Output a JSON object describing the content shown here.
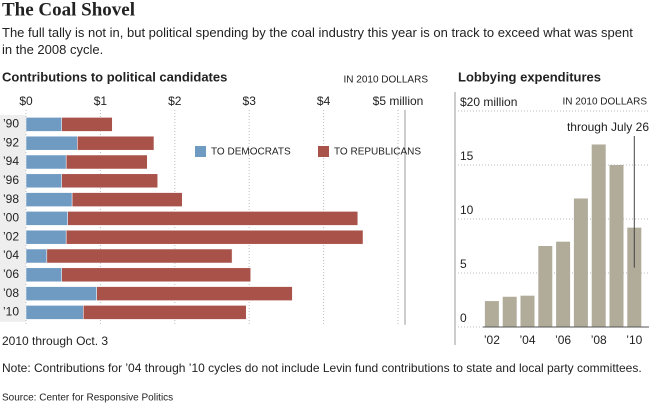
{
  "title": "The Coal Shovel",
  "intro": "The full tally is not in, but political spending by the coal industry this year is on track to exceed what was spent in the 2008 cycle.",
  "note": "Note: Contributions for ’04 through ’10 cycles do not include Levin fund contributions to state and local party committees.",
  "source": "Source: Center for Responsive Politics",
  "chart_data": [
    {
      "type": "bar",
      "orientation": "horizontal",
      "stacked": true,
      "title": "Contributions to political candidates",
      "subtitle": "IN 2010 DOLLARS",
      "annotation": "2010 through Oct. 3",
      "categories": [
        "’90",
        "’92",
        "’94",
        "’96",
        "’98",
        "’00",
        "’02",
        "’04",
        "’06",
        "’08",
        "’10"
      ],
      "series": [
        {
          "name": "TO DEMOCRATS",
          "color": "#6f9bc3",
          "values": [
            0.48,
            0.69,
            0.54,
            0.48,
            0.62,
            0.56,
            0.54,
            0.28,
            0.48,
            0.95,
            0.77
          ]
        },
        {
          "name": "TO REPUBLICANS",
          "color": "#a9524a",
          "values": [
            0.68,
            1.03,
            1.09,
            1.29,
            1.48,
            3.9,
            3.99,
            2.49,
            2.54,
            2.63,
            2.19
          ]
        }
      ],
      "xlim": [
        0,
        5
      ],
      "xticks": [
        {
          "value": 0,
          "label": "$0"
        },
        {
          "value": 1,
          "label": "$1"
        },
        {
          "value": 2,
          "label": "$2"
        },
        {
          "value": 3,
          "label": "$3"
        },
        {
          "value": 4,
          "label": "$4"
        },
        {
          "value": 5,
          "label": "$5 million"
        }
      ],
      "grid": true
    },
    {
      "type": "bar",
      "title": "Lobbying expenditures",
      "subtitle": "IN 2010 DOLLARS",
      "annotation": "through July 26",
      "categories": [
        "’02",
        null,
        "’04",
        null,
        "’06",
        null,
        "’08",
        null,
        "’10"
      ],
      "values": [
        2.4,
        2.8,
        2.9,
        7.5,
        7.9,
        11.9,
        16.9,
        15.0,
        9.2
      ],
      "color": "#b1ac99",
      "ylim": [
        0,
        20
      ],
      "yticks": [
        0,
        5,
        10,
        15,
        {
          "value": 20,
          "label": "$20 million"
        }
      ],
      "grid": true
    }
  ]
}
